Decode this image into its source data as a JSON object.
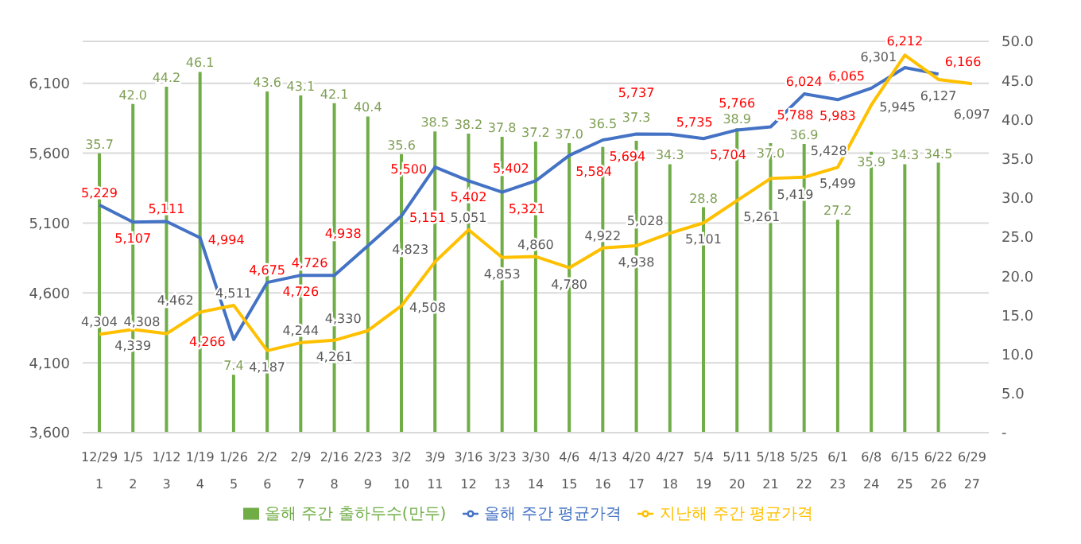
{
  "chart_data": {
    "type": "bar",
    "categories": [
      "12/29\n1",
      "1/5\n2",
      "1/12\n3",
      "1/19\n4",
      "1/26\n5",
      "2/2\n6",
      "2/9\n7",
      "2/16\n8",
      "2/23\n9",
      "3/2\n10",
      "3/9\n11",
      "3/16\n12",
      "3/23\n13",
      "3/30\n14",
      "4/6\n15",
      "4/13\n16",
      "4/20\n17",
      "4/27\n18",
      "5/4\n19",
      "5/11\n20",
      "5/18\n21",
      "5/25\n22",
      "6/1\n23",
      "6/8\n24",
      "6/15\n25",
      "6/22\n26",
      "6/29\n27"
    ],
    "series": [
      {
        "name": "올해 주간 출하두수(만두)",
        "type": "bar",
        "axis": "y2",
        "color": "#70ad47",
        "values": [
          35.7,
          42.0,
          44.2,
          46.1,
          7.4,
          43.6,
          43.1,
          42.1,
          40.4,
          35.6,
          38.5,
          38.2,
          37.8,
          37.2,
          37.0,
          36.5,
          37.3,
          34.3,
          28.8,
          38.9,
          37.0,
          36.9,
          27.2,
          35.9,
          34.3,
          34.5,
          null
        ],
        "value_labels": [
          "35.7",
          "42.0",
          "44.2",
          "46.1",
          "7.4",
          "43.6",
          "43.1",
          "42.1",
          "40.4",
          "35.6",
          "38.5",
          "38.2",
          "37.8",
          "37.2",
          "37.0",
          "36.5",
          "37.3",
          "34.3",
          "28.8",
          "38.9",
          "37.0",
          "36.9",
          "27.2",
          "35.9",
          "34.3",
          "34.5",
          null
        ]
      },
      {
        "name": "올해 주간 평균가격",
        "type": "line",
        "color": "#4472c4",
        "values": [
          5229,
          5107,
          5111,
          4994,
          4266,
          4675,
          4726,
          4726,
          4938,
          5151,
          5500,
          5402,
          5321,
          5402,
          5584,
          5694,
          5737,
          5735,
          5704,
          5766,
          5788,
          6024,
          5983,
          6065,
          6212,
          6166,
          null
        ],
        "value_labels": [
          "5,229",
          "5,107",
          "5,111",
          "4,994",
          "4,266",
          "4,675",
          "4,726",
          "4,726",
          "4,938",
          "5,151",
          "5,500",
          "5,402",
          "5,321",
          "5,402",
          "5,584",
          "5,694",
          "5,737",
          "5,735",
          "5,704",
          "5,766",
          "5,788",
          "6,024",
          "5,983",
          "6,065",
          "6,212",
          "6,166",
          null
        ]
      },
      {
        "name": "지난해 주간 평균가격",
        "type": "line",
        "color": "#ffc000",
        "values": [
          4304,
          4339,
          4308,
          4462,
          4511,
          4187,
          4244,
          4261,
          4330,
          4508,
          4823,
          5051,
          4853,
          4860,
          4780,
          4922,
          4938,
          5028,
          5101,
          5261,
          5419,
          5428,
          5499,
          5945,
          6301,
          6127,
          6097
        ],
        "value_labels": [
          "4,304",
          "4,339",
          "4,308",
          "4,462",
          "4,511",
          "4,187",
          "4,244",
          "4,261",
          "4,330",
          "4,508",
          "4,823",
          "5,051",
          "4,853",
          "4,860",
          "4,780",
          "4,922",
          "4,938",
          "5,028",
          "5,101",
          "5,261",
          "5,419",
          "5,428",
          "5,499",
          "5,945",
          "6,301",
          "6,127",
          "6,097"
        ]
      }
    ],
    "ylim": [
      3600,
      6400
    ],
    "yticks": [
      {
        "value": 3600,
        "label": "3,600"
      },
      {
        "value": 4100,
        "label": "4,100"
      },
      {
        "value": 4600,
        "label": "4,600"
      },
      {
        "value": 5100,
        "label": "5,100"
      },
      {
        "value": 5600,
        "label": "5,600"
      },
      {
        "value": 6100,
        "label": "6,100"
      }
    ],
    "y2lim": [
      0,
      50
    ],
    "y2ticks": [
      {
        "value": 0,
        "label": "-"
      },
      {
        "value": 5,
        "label": "5.0"
      },
      {
        "value": 10,
        "label": "10.0"
      },
      {
        "value": 15,
        "label": "15.0"
      },
      {
        "value": 20,
        "label": "20.0"
      },
      {
        "value": 25,
        "label": "25.0"
      },
      {
        "value": 30,
        "label": "30.0"
      },
      {
        "value": 35,
        "label": "35.0"
      },
      {
        "value": 40,
        "label": "40.0"
      },
      {
        "value": 45,
        "label": "45.0"
      },
      {
        "value": 50,
        "label": "50.0"
      }
    ],
    "grid": "y",
    "legend": "bottom",
    "marker": "none"
  }
}
